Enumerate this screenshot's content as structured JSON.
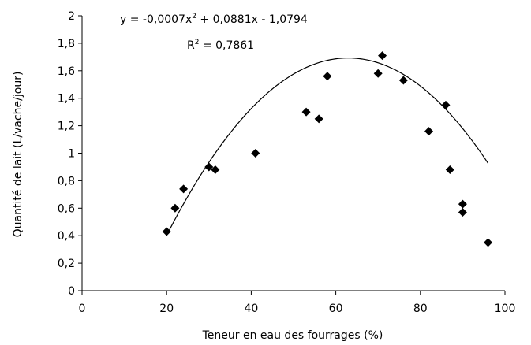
{
  "chart_data": {
    "type": "scatter",
    "xlabel": "Teneur en eau des fourrages (%)",
    "ylabel": "Quantité de lait (L/vache/jour)",
    "xlim": [
      0,
      100
    ],
    "ylim": [
      0,
      2
    ],
    "xticks": [
      0,
      20,
      40,
      60,
      80,
      100
    ],
    "xtick_labels": [
      "0",
      "20",
      "40",
      "60",
      "80",
      "100"
    ],
    "yticks": [
      0,
      0.2,
      0.4,
      0.6,
      0.8,
      1,
      1.2,
      1.4,
      1.6,
      1.8,
      2
    ],
    "ytick_labels": [
      "0",
      "0,2",
      "0,4",
      "0,6",
      "0,8",
      "1",
      "1,2",
      "1,4",
      "1,6",
      "1,8",
      "2"
    ],
    "grid": false,
    "points": {
      "x": [
        20,
        22,
        24,
        30,
        31.5,
        41,
        53,
        56,
        58,
        70,
        71,
        76,
        82,
        86,
        87,
        90,
        90,
        96
      ],
      "y": [
        0.43,
        0.6,
        0.74,
        0.9,
        0.88,
        1.0,
        1.3,
        1.25,
        1.56,
        1.58,
        1.71,
        1.53,
        1.16,
        1.35,
        0.88,
        0.63,
        0.57,
        0.35
      ],
      "marker": "diamond",
      "color": "#000000"
    },
    "trendline": {
      "type": "polynomial",
      "a": -0.0007,
      "b": 0.0881,
      "c": -1.0794,
      "x_range": [
        20,
        96
      ],
      "color": "#000000"
    },
    "annotations": {
      "equation_prefix": "y = -0,0007x",
      "equation_exp": "2",
      "equation_suffix": " + 0,0881x - 1,0794",
      "r2_prefix": "R",
      "r2_exp": "2",
      "r2_suffix": " = 0,7861"
    }
  }
}
